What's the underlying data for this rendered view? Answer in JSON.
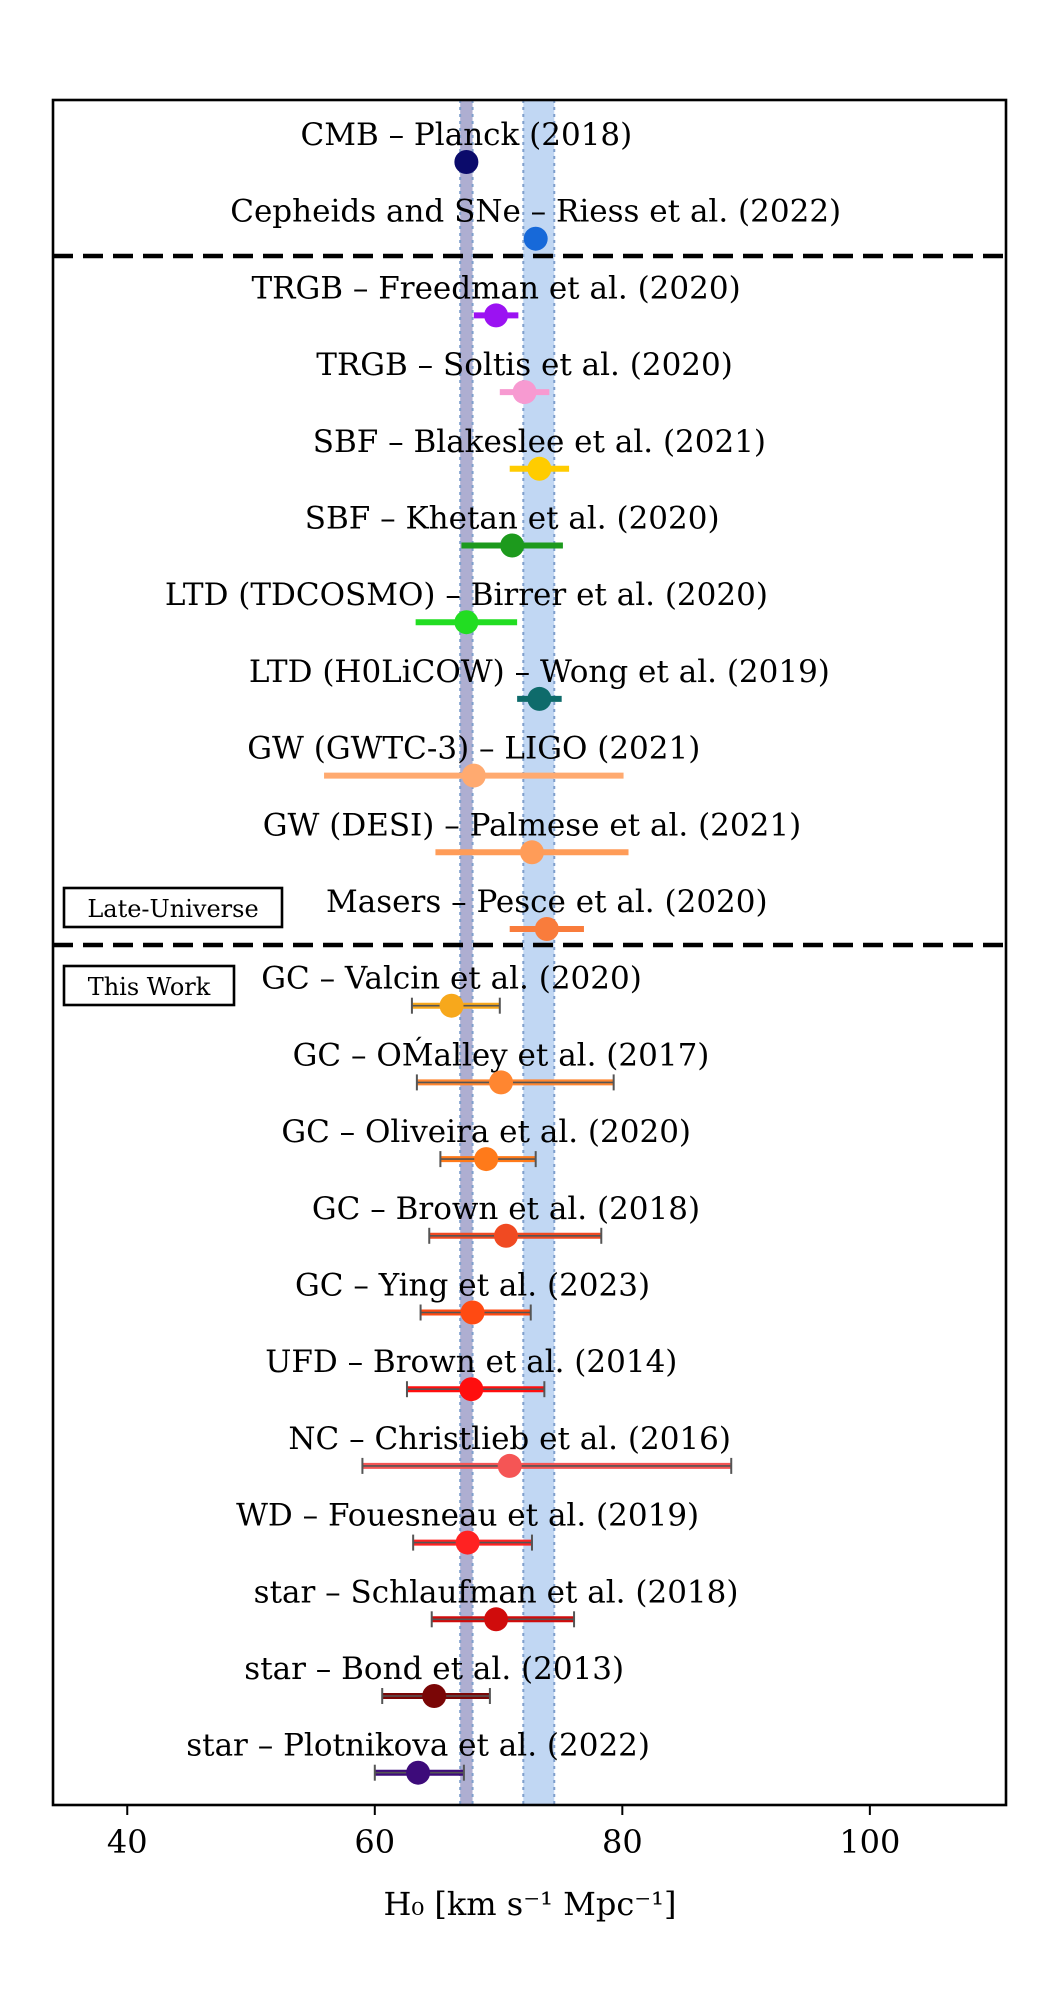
{
  "chart_data": {
    "type": "scatter",
    "xlabel": "H₀ [km s⁻¹ Mpc⁻¹]",
    "xlim": [
      34,
      111
    ],
    "xticks": [
      40,
      60,
      80,
      100
    ],
    "grid": false,
    "bands": [
      {
        "name": "CMB – Planck (2018)",
        "lo": 66.9,
        "hi": 67.9,
        "color": "#8f8fbf"
      },
      {
        "name": "Cepheids and SNe – Riess et al. (2022)",
        "lo": 72.0,
        "hi": 74.5,
        "color": "#a9c8ee"
      }
    ],
    "section_labels": [
      "Late-Universe",
      "This Work"
    ],
    "rows": [
      {
        "label": "CMB – Planck (2018)",
        "x": 67.4,
        "lo": 67.4,
        "hi": 67.4,
        "color": "#0b0b6b",
        "capped": false
      },
      {
        "label": "Cepheids and SNe – Riess et al. (2022)",
        "x": 73.0,
        "lo": 73.0,
        "hi": 73.0,
        "color": "#1769d9",
        "capped": false
      },
      {
        "label": "TRGB – Freedman et al. (2020)",
        "x": 69.8,
        "lo": 68.0,
        "hi": 71.6,
        "color": "#9b12f2",
        "capped": false
      },
      {
        "label": "TRGB – Soltis et al. (2020)",
        "x": 72.1,
        "lo": 70.1,
        "hi": 74.1,
        "color": "#f79ad1",
        "capped": false
      },
      {
        "label": "SBF – Blakeslee et al. (2021)",
        "x": 73.3,
        "lo": 70.9,
        "hi": 75.7,
        "color": "#ffcc00",
        "capped": false
      },
      {
        "label": "SBF – Khetan et al. (2020)",
        "x": 71.1,
        "lo": 67.0,
        "hi": 75.2,
        "color": "#1d9a1d",
        "capped": false
      },
      {
        "label": "LTD (TDCOSMO) – Birrer et al. (2020)",
        "x": 67.4,
        "lo": 63.3,
        "hi": 71.5,
        "color": "#22dd22",
        "capped": false
      },
      {
        "label": "LTD (H0LiCOW) – Wong et al. (2019)",
        "x": 73.3,
        "lo": 71.5,
        "hi": 75.1,
        "color": "#0e6b6b",
        "capped": false
      },
      {
        "label": "GW (GWTC-3) – LIGO (2021)",
        "x": 68.0,
        "lo": 55.9,
        "hi": 80.1,
        "color": "#ffaa70",
        "capped": false
      },
      {
        "label": "GW (DESI) – Palmese et al. (2021)",
        "x": 72.7,
        "lo": 64.9,
        "hi": 80.5,
        "color": "#ff9c58",
        "capped": false
      },
      {
        "label": "Masers – Pesce et al. (2020)",
        "x": 73.9,
        "lo": 70.9,
        "hi": 76.9,
        "color": "#f97c3c",
        "capped": false
      },
      {
        "label": "GC – Valcin et al. (2020)",
        "x": 66.2,
        "lo": 63.0,
        "hi": 70.1,
        "color": "#f7a81c",
        "capped": true
      },
      {
        "label": "GC – OḾalley et al. (2017)",
        "x": 70.2,
        "lo": 63.4,
        "hi": 79.3,
        "color": "#ff8630",
        "capped": true
      },
      {
        "label": "GC – Oliveira et al. (2020)",
        "x": 69.0,
        "lo": 65.3,
        "hi": 73.0,
        "color": "#ff7a1a",
        "capped": true
      },
      {
        "label": "GC – Brown et al. (2018)",
        "x": 70.6,
        "lo": 64.4,
        "hi": 78.3,
        "color": "#f04a22",
        "capped": true
      },
      {
        "label": "GC – Ying et al. (2023)",
        "x": 67.9,
        "lo": 63.7,
        "hi": 72.6,
        "color": "#ff4a12",
        "capped": true
      },
      {
        "label": "UFD – Brown et al. (2014)",
        "x": 67.8,
        "lo": 62.6,
        "hi": 73.7,
        "color": "#ff0e0e",
        "capped": true
      },
      {
        "label": "NC – Christlieb et al. (2016)",
        "x": 70.9,
        "lo": 59.0,
        "hi": 88.8,
        "color": "#f55555",
        "capped": true
      },
      {
        "label": "WD – Fouesneau et al. (2019)",
        "x": 67.5,
        "lo": 63.1,
        "hi": 72.7,
        "color": "#ff2222",
        "capped": true
      },
      {
        "label": "star – Schlaufman et al. (2018)",
        "x": 69.8,
        "lo": 64.6,
        "hi": 76.1,
        "color": "#d00c0c",
        "capped": true
      },
      {
        "label": "star – Bond et al. (2013)",
        "x": 64.8,
        "lo": 60.6,
        "hi": 69.3,
        "color": "#7a0606",
        "capped": true
      },
      {
        "label": "star – Plotnikova et al. (2022)",
        "x": 63.5,
        "lo": 60.0,
        "hi": 67.2,
        "color": "#3d0b7a",
        "capped": true
      }
    ]
  }
}
